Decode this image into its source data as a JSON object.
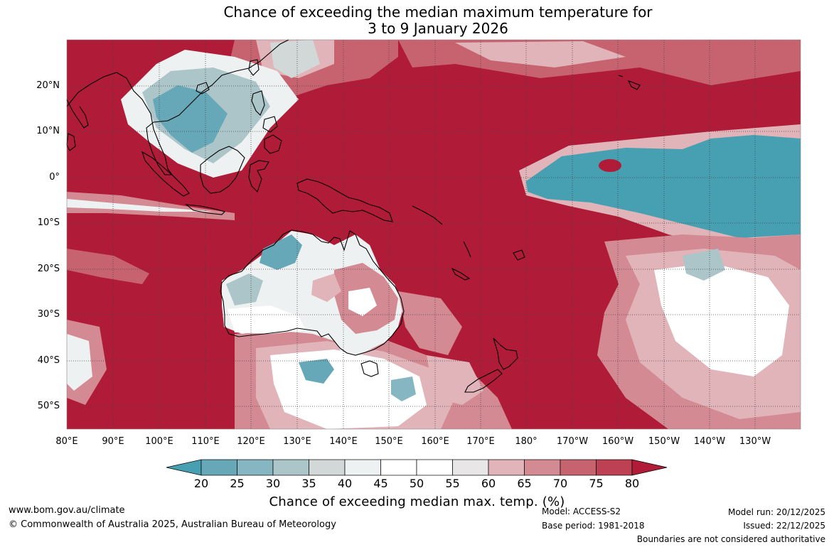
{
  "title": {
    "line1": "Chance of exceeding the median maximum temperature for",
    "line2": "3 to 9 January 2026"
  },
  "map": {
    "lat_labels": [
      "20°N",
      "10°N",
      "0°",
      "10°S",
      "20°S",
      "30°S",
      "40°S",
      "50°S"
    ],
    "lon_labels": [
      "80°E",
      "90°E",
      "100°E",
      "110°E",
      "120°E",
      "130°E",
      "140°E",
      "150°E",
      "160°E",
      "170°E",
      "180°",
      "170°W",
      "160°W",
      "150°W",
      "140°W",
      "130°W"
    ],
    "background_category": "80+",
    "regions": [
      {
        "name": "Equatorial central Pacific",
        "category": "20-25"
      },
      {
        "name": "South China Sea / Philippines",
        "category": "25-45"
      },
      {
        "name": "Northern Australia",
        "category": "35-55"
      },
      {
        "name": "Inland eastern Australia",
        "category": "60-75"
      },
      {
        "name": "Southern Ocean south of Australia",
        "category": "25-55"
      },
      {
        "name": "South Pacific near 30°S 150°W",
        "category": "45-65"
      }
    ]
  },
  "colorbar": {
    "title": "Chance of exceeding median max. temp. (%)",
    "ticks": [
      "20",
      "25",
      "30",
      "35",
      "40",
      "45",
      "50",
      "55",
      "60",
      "65",
      "70",
      "75",
      "80"
    ],
    "colors": [
      "#47a0b1",
      "#66a8b8",
      "#86b6c1",
      "#abc5c9",
      "#d2d8d8",
      "#eef1f1",
      "#ffffff",
      "#ffffff",
      "#e8e6e6",
      "#e0b4b8",
      "#d48a93",
      "#c6636f",
      "#bd4152",
      "#b01c37"
    ]
  },
  "footer": {
    "website": "www.bom.gov.au/climate",
    "copyright": "© Commonwealth of Australia 2025, Australian Bureau of Meteorology",
    "model": "Model: ACCESS-S2",
    "base_period": "Base period: 1981-2018",
    "model_run": "Model run: 20/12/2025",
    "issued": "Issued: 22/12/2025",
    "disclaimer": "Boundaries are not considered authoritative"
  }
}
